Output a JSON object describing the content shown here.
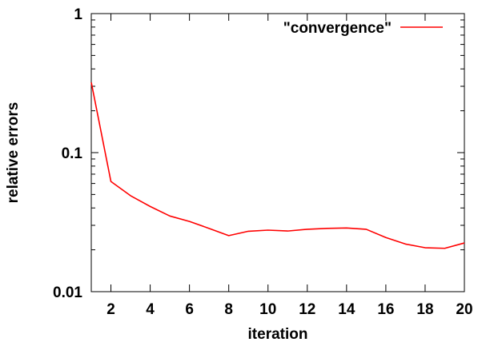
{
  "chart_data": {
    "type": "line",
    "title": "",
    "xlabel": "iteration",
    "ylabel": "relative errors",
    "xlim": [
      1,
      20
    ],
    "ylim": [
      0.01,
      1
    ],
    "yscale": "log",
    "grid": false,
    "legend_position": "top-right",
    "x_ticks": [
      2,
      4,
      6,
      8,
      10,
      12,
      14,
      16,
      18,
      20
    ],
    "x_tick_labels": [
      "2",
      "4",
      "6",
      "8",
      "10",
      "12",
      "14",
      "16",
      "18",
      "20"
    ],
    "y_ticks": [
      0.01,
      0.1,
      1
    ],
    "y_tick_labels": [
      "0.01",
      "0.1",
      "1"
    ],
    "series": [
      {
        "name": "\"convergence\"",
        "color": "#ff0000",
        "x": [
          1,
          2,
          3,
          4,
          5,
          6,
          7,
          8,
          9,
          10,
          11,
          12,
          13,
          14,
          15,
          16,
          17,
          18,
          19,
          20
        ],
        "y": [
          0.32,
          0.062,
          0.049,
          0.041,
          0.035,
          0.032,
          0.0285,
          0.0253,
          0.0272,
          0.0277,
          0.0273,
          0.0281,
          0.0285,
          0.0287,
          0.0281,
          0.0245,
          0.022,
          0.0207,
          0.0205,
          0.0224
        ]
      }
    ]
  }
}
